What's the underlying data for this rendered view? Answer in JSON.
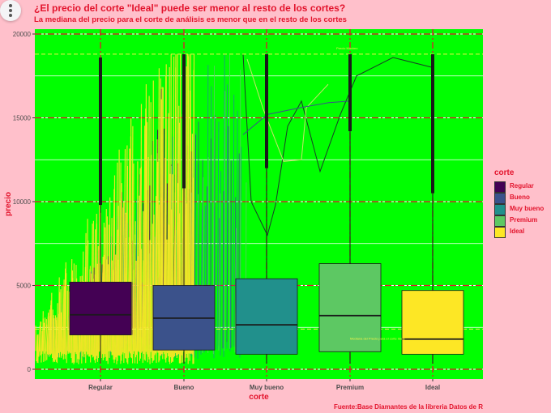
{
  "title": "¿El precio del corte \"Ideal\" puede ser menor al resto de los cortes?",
  "subtitle": "La mediana del precio para el corte de análisis es menor que en el resto de los cortes",
  "caption": "Fuente:Base Diamantes de la libreria Datos de R",
  "colors": {
    "page": "#ffc0cb",
    "panel": "#00ff00",
    "text": "#e3142d",
    "regular": "#440154",
    "bueno": "#3b528b",
    "muy_bueno": "#21908c",
    "premium": "#5dc863",
    "ideal": "#fde725"
  },
  "legend": {
    "title": "corte",
    "items": [
      {
        "label": "Regular",
        "color": "#440154"
      },
      {
        "label": "Bueno",
        "color": "#3b528b"
      },
      {
        "label": "Muy bueno",
        "color": "#21908c"
      },
      {
        "label": "Premium",
        "color": "#5dc863"
      },
      {
        "label": "Ideal",
        "color": "#fde725"
      }
    ]
  },
  "chart_data": {
    "type": "boxplot",
    "xlabel": "corte",
    "ylabel": "precio",
    "categories": [
      "Regular",
      "Bueno",
      "Muy bueno",
      "Premium",
      "Ideal"
    ],
    "ylim": [
      0,
      20000
    ],
    "yticks": [
      0,
      5000,
      10000,
      15000,
      20000
    ],
    "boxes": [
      {
        "category": "Regular",
        "q1": 2050,
        "median": 3250,
        "q3": 5200,
        "whisker_low": 330,
        "whisker_high": 9800,
        "outlier_max": 18600
      },
      {
        "category": "Bueno",
        "q1": 1150,
        "median": 3050,
        "q3": 5000,
        "whisker_low": 330,
        "whisker_high": 10800,
        "outlier_max": 18800
      },
      {
        "category": "Muy bueno",
        "q1": 900,
        "median": 2650,
        "q3": 5400,
        "whisker_low": 330,
        "whisker_high": 12000,
        "outlier_max": 18800
      },
      {
        "category": "Premium",
        "q1": 1050,
        "median": 3200,
        "q3": 6300,
        "whisker_low": 330,
        "whisker_high": 14200,
        "outlier_max": 18800
      },
      {
        "category": "Ideal",
        "q1": 900,
        "median": 1800,
        "q3": 4700,
        "whisker_low": 330,
        "whisker_high": 10500,
        "outlier_max": 18800
      }
    ],
    "reference_lines": [
      {
        "label": "Precio Máximo",
        "value": 18800
      },
      {
        "label": "Mediana del Precio para el corte Ideal",
        "value": 1800
      },
      {
        "value": 2400
      }
    ],
    "grid": true,
    "legend_position": "right"
  }
}
